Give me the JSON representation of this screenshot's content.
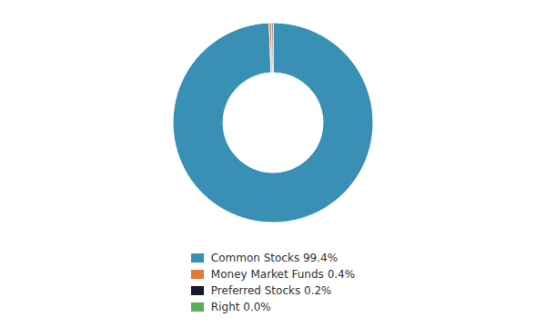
{
  "chart_data": {
    "type": "pie",
    "categories": [
      "Common Stocks 99.4%",
      "Money Market Funds 0.4%",
      "Preferred Stocks 0.2%",
      "Right 0.0%"
    ],
    "values": [
      99.4,
      0.4,
      0.2,
      0.0
    ],
    "colors": [
      "#3a8fb5",
      "#e07b39",
      "#1a1a2e",
      "#5aab5a"
    ],
    "legend": "bottom"
  }
}
